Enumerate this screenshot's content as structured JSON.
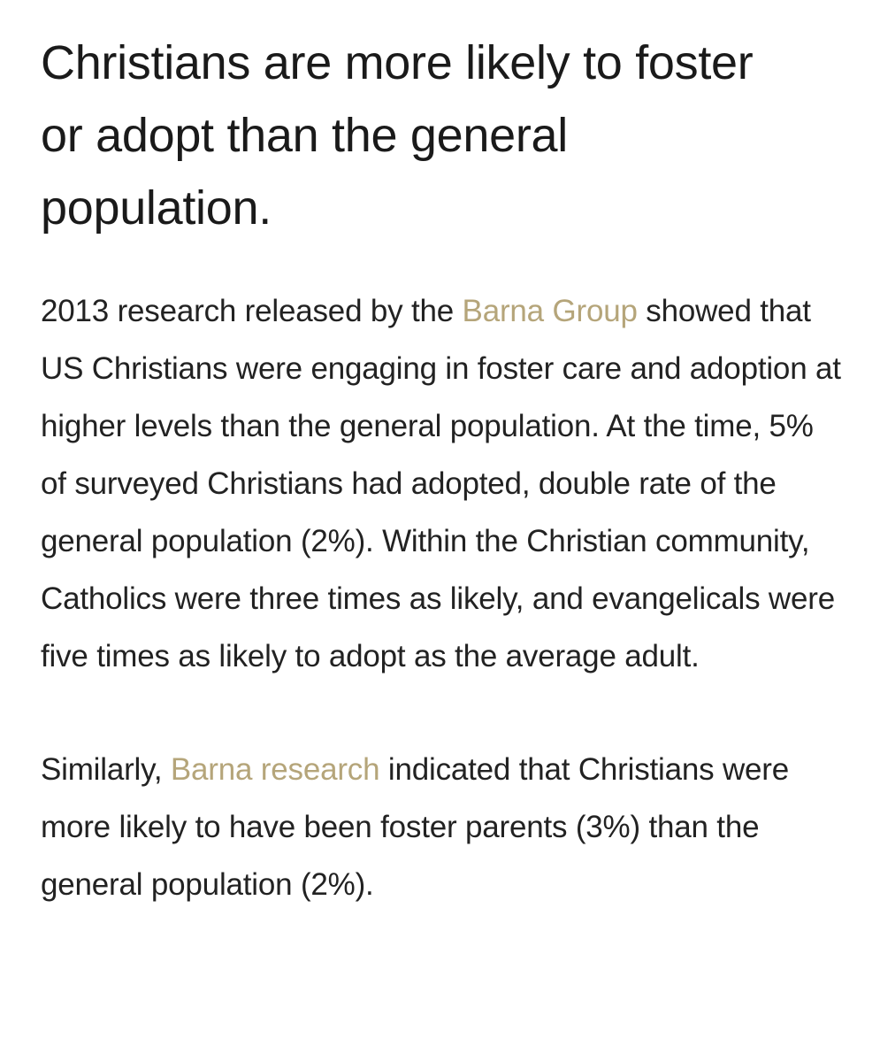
{
  "article": {
    "headline": "Christians are more likely to foster or adopt than the general population.",
    "paragraph1": {
      "before_link": "2013 research released by the ",
      "link_text": "Barna Group",
      "after_link": " showed that US Christians were engaging in foster care and adoption at higher levels than the general population. At the time, 5% of surveyed Christians had adopted, double rate of the general population (2%). Within the Christian community, Catholics were three times as likely, and evangelicals were five times as likely to adopt as the average adult."
    },
    "paragraph2": {
      "before_link": "Similarly, ",
      "link_text": "Barna research",
      "after_link": " indicated that Christians were more likely to have been foster parents (3%) than the general population (2%)."
    }
  },
  "colors": {
    "text": "#222222",
    "link": "#b5a57a",
    "background": "#ffffff"
  }
}
